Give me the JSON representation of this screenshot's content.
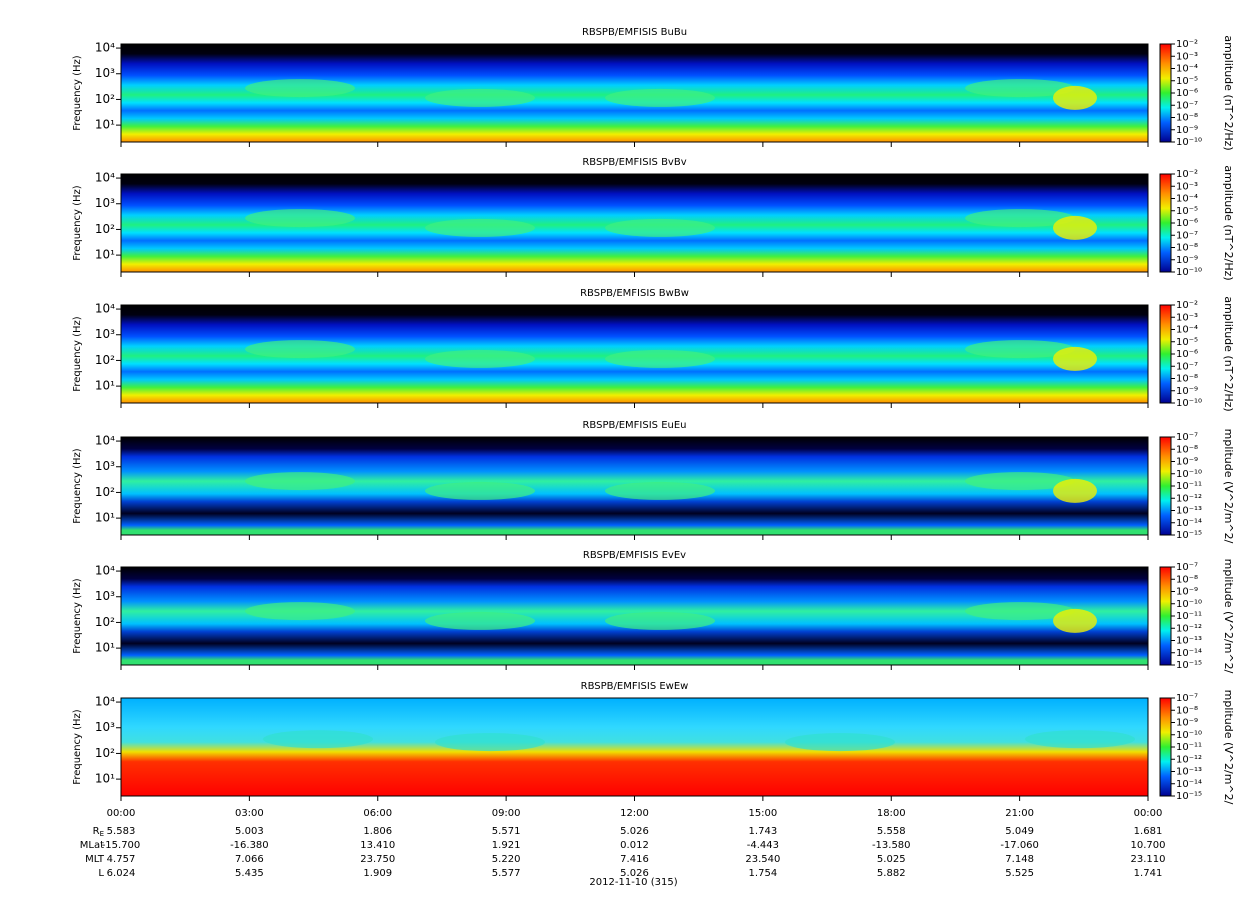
{
  "chart_data": [
    {
      "type": "spectrogram",
      "title": "RBSPB/EMFISIS  BuBu",
      "ylabel": "Frequency (Hz)",
      "yscale": "log",
      "ylim": [
        2.2,
        14400
      ],
      "yticks": [
        {
          "value": 10,
          "label": "10¹"
        },
        {
          "value": 100,
          "label": "10²"
        },
        {
          "value": 1000,
          "label": "10³"
        },
        {
          "value": 10000,
          "label": "10⁴"
        }
      ],
      "zlabel": "amplitude (nT^2/Hz)",
      "zscale": "log",
      "zlim": [
        1e-10,
        0.01
      ],
      "zticks": [
        {
          "value": 0.01,
          "label": "10⁻²"
        },
        {
          "value": 0.001,
          "label": "10⁻³"
        },
        {
          "value": 0.0001,
          "label": "10⁻⁴"
        },
        {
          "value": 1e-05,
          "label": "10⁻⁵"
        },
        {
          "value": 1e-06,
          "label": "10⁻⁶"
        },
        {
          "value": 1e-07,
          "label": "10⁻⁷"
        },
        {
          "value": 1e-08,
          "label": "10⁻⁸"
        },
        {
          "value": 1e-09,
          "label": "10⁻⁹"
        },
        {
          "value": 1e-10,
          "label": "10⁻¹⁰"
        }
      ]
    },
    {
      "type": "spectrogram",
      "title": "RBSPB/EMFISIS  BvBv",
      "ylabel": "Frequency (Hz)",
      "yscale": "log",
      "ylim": [
        2.2,
        14400
      ],
      "yticks": [
        {
          "value": 10,
          "label": "10¹"
        },
        {
          "value": 100,
          "label": "10²"
        },
        {
          "value": 1000,
          "label": "10³"
        },
        {
          "value": 10000,
          "label": "10⁴"
        }
      ],
      "zlabel": "amplitude (nT^2/Hz)",
      "zscale": "log",
      "zlim": [
        1e-10,
        0.01
      ],
      "zticks": [
        {
          "value": 0.01,
          "label": "10⁻²"
        },
        {
          "value": 0.001,
          "label": "10⁻³"
        },
        {
          "value": 0.0001,
          "label": "10⁻⁴"
        },
        {
          "value": 1e-05,
          "label": "10⁻⁵"
        },
        {
          "value": 1e-06,
          "label": "10⁻⁶"
        },
        {
          "value": 1e-07,
          "label": "10⁻⁷"
        },
        {
          "value": 1e-08,
          "label": "10⁻⁸"
        },
        {
          "value": 1e-09,
          "label": "10⁻⁹"
        },
        {
          "value": 1e-10,
          "label": "10⁻¹⁰"
        }
      ]
    },
    {
      "type": "spectrogram",
      "title": "RBSPB/EMFISIS  BwBw",
      "ylabel": "Frequency (Hz)",
      "yscale": "log",
      "ylim": [
        2.2,
        14400
      ],
      "yticks": [
        {
          "value": 10,
          "label": "10¹"
        },
        {
          "value": 100,
          "label": "10²"
        },
        {
          "value": 1000,
          "label": "10³"
        },
        {
          "value": 10000,
          "label": "10⁴"
        }
      ],
      "zlabel": "amplitude (nT^2/Hz)",
      "zscale": "log",
      "zlim": [
        1e-10,
        0.01
      ],
      "zticks": [
        {
          "value": 0.01,
          "label": "10⁻²"
        },
        {
          "value": 0.001,
          "label": "10⁻³"
        },
        {
          "value": 0.0001,
          "label": "10⁻⁴"
        },
        {
          "value": 1e-05,
          "label": "10⁻⁵"
        },
        {
          "value": 1e-06,
          "label": "10⁻⁶"
        },
        {
          "value": 1e-07,
          "label": "10⁻⁷"
        },
        {
          "value": 1e-08,
          "label": "10⁻⁸"
        },
        {
          "value": 1e-09,
          "label": "10⁻⁹"
        },
        {
          "value": 1e-10,
          "label": "10⁻¹⁰"
        }
      ]
    },
    {
      "type": "spectrogram",
      "title": "RBSPB/EMFISIS  EuEu",
      "ylabel": "Frequency (Hz)",
      "yscale": "log",
      "ylim": [
        2.2,
        14400
      ],
      "yticks": [
        {
          "value": 10,
          "label": "10¹"
        },
        {
          "value": 100,
          "label": "10²"
        },
        {
          "value": 1000,
          "label": "10³"
        },
        {
          "value": 10000,
          "label": "10⁴"
        }
      ],
      "zlabel": "mplitude (V^2/m^2/",
      "zscale": "log",
      "zlim": [
        1e-15,
        1e-07
      ],
      "zticks": [
        {
          "value": 1e-07,
          "label": "10⁻⁷"
        },
        {
          "value": 1e-08,
          "label": "10⁻⁸"
        },
        {
          "value": 1e-09,
          "label": "10⁻⁹"
        },
        {
          "value": 1e-10,
          "label": "10⁻¹⁰"
        },
        {
          "value": 1e-11,
          "label": "10⁻¹¹"
        },
        {
          "value": 1e-12,
          "label": "10⁻¹²"
        },
        {
          "value": 1e-13,
          "label": "10⁻¹³"
        },
        {
          "value": 1e-14,
          "label": "10⁻¹⁴"
        },
        {
          "value": 1e-15,
          "label": "10⁻¹⁵"
        }
      ]
    },
    {
      "type": "spectrogram",
      "title": "RBSPB/EMFISIS  EvEv",
      "ylabel": "Frequency (Hz)",
      "yscale": "log",
      "ylim": [
        2.2,
        14400
      ],
      "yticks": [
        {
          "value": 10,
          "label": "10¹"
        },
        {
          "value": 100,
          "label": "10²"
        },
        {
          "value": 1000,
          "label": "10³"
        },
        {
          "value": 10000,
          "label": "10⁴"
        }
      ],
      "zlabel": "mplitude (V^2/m^2/",
      "zscale": "log",
      "zlim": [
        1e-15,
        1e-07
      ],
      "zticks": [
        {
          "value": 1e-07,
          "label": "10⁻⁷"
        },
        {
          "value": 1e-08,
          "label": "10⁻⁸"
        },
        {
          "value": 1e-09,
          "label": "10⁻⁹"
        },
        {
          "value": 1e-10,
          "label": "10⁻¹⁰"
        },
        {
          "value": 1e-11,
          "label": "10⁻¹¹"
        },
        {
          "value": 1e-12,
          "label": "10⁻¹²"
        },
        {
          "value": 1e-13,
          "label": "10⁻¹³"
        },
        {
          "value": 1e-14,
          "label": "10⁻¹⁴"
        },
        {
          "value": 1e-15,
          "label": "10⁻¹⁵"
        }
      ]
    },
    {
      "type": "spectrogram",
      "title": "RBSPB/EMFISIS  EwEw",
      "ylabel": "Frequency (Hz)",
      "yscale": "log",
      "ylim": [
        2.2,
        14400
      ],
      "yticks": [
        {
          "value": 10,
          "label": "10¹"
        },
        {
          "value": 100,
          "label": "10²"
        },
        {
          "value": 1000,
          "label": "10³"
        },
        {
          "value": 10000,
          "label": "10⁴"
        }
      ],
      "zlabel": "mplitude (V^2/m^2/",
      "zscale": "log",
      "zlim": [
        1e-15,
        1e-07
      ],
      "zticks": [
        {
          "value": 1e-07,
          "label": "10⁻⁷"
        },
        {
          "value": 1e-08,
          "label": "10⁻⁸"
        },
        {
          "value": 1e-09,
          "label": "10⁻⁹"
        },
        {
          "value": 1e-10,
          "label": "10⁻¹⁰"
        },
        {
          "value": 1e-11,
          "label": "10⁻¹¹"
        },
        {
          "value": 1e-12,
          "label": "10⁻¹²"
        },
        {
          "value": 1e-13,
          "label": "10⁻¹³"
        },
        {
          "value": 1e-14,
          "label": "10⁻¹⁴"
        },
        {
          "value": 1e-15,
          "label": "10⁻¹⁵"
        }
      ],
      "xlim": [
        0,
        24
      ],
      "xticks": [
        {
          "value": 0,
          "label": "00:00"
        },
        {
          "value": 3,
          "label": "03:00"
        },
        {
          "value": 6,
          "label": "06:00"
        },
        {
          "value": 9,
          "label": "09:00"
        },
        {
          "value": 12,
          "label": "12:00"
        },
        {
          "value": 15,
          "label": "15:00"
        },
        {
          "value": 18,
          "label": "18:00"
        },
        {
          "value": 21,
          "label": "21:00"
        },
        {
          "value": 24,
          "label": "00:00"
        }
      ]
    }
  ],
  "ephemeris": [
    {
      "label": "R",
      "subscript": "E",
      "values": [
        "5.583",
        "5.003",
        "1.806",
        "5.571",
        "5.026",
        "1.743",
        "5.558",
        "5.049",
        "1.681"
      ]
    },
    {
      "label": "MLat",
      "values": [
        "-15.700",
        "-16.380",
        "13.410",
        "1.921",
        "0.012",
        "-4.443",
        "-13.580",
        "-17.060",
        "10.700"
      ]
    },
    {
      "label": "MLT",
      "values": [
        "4.757",
        "7.066",
        "23.750",
        "5.220",
        "7.416",
        "23.540",
        "5.025",
        "7.148",
        "23.110"
      ]
    },
    {
      "label": "L",
      "values": [
        "6.024",
        "5.435",
        "1.909",
        "5.577",
        "5.026",
        "1.754",
        "5.882",
        "5.525",
        "1.741"
      ]
    }
  ],
  "date": "2012-11-10 (315)"
}
